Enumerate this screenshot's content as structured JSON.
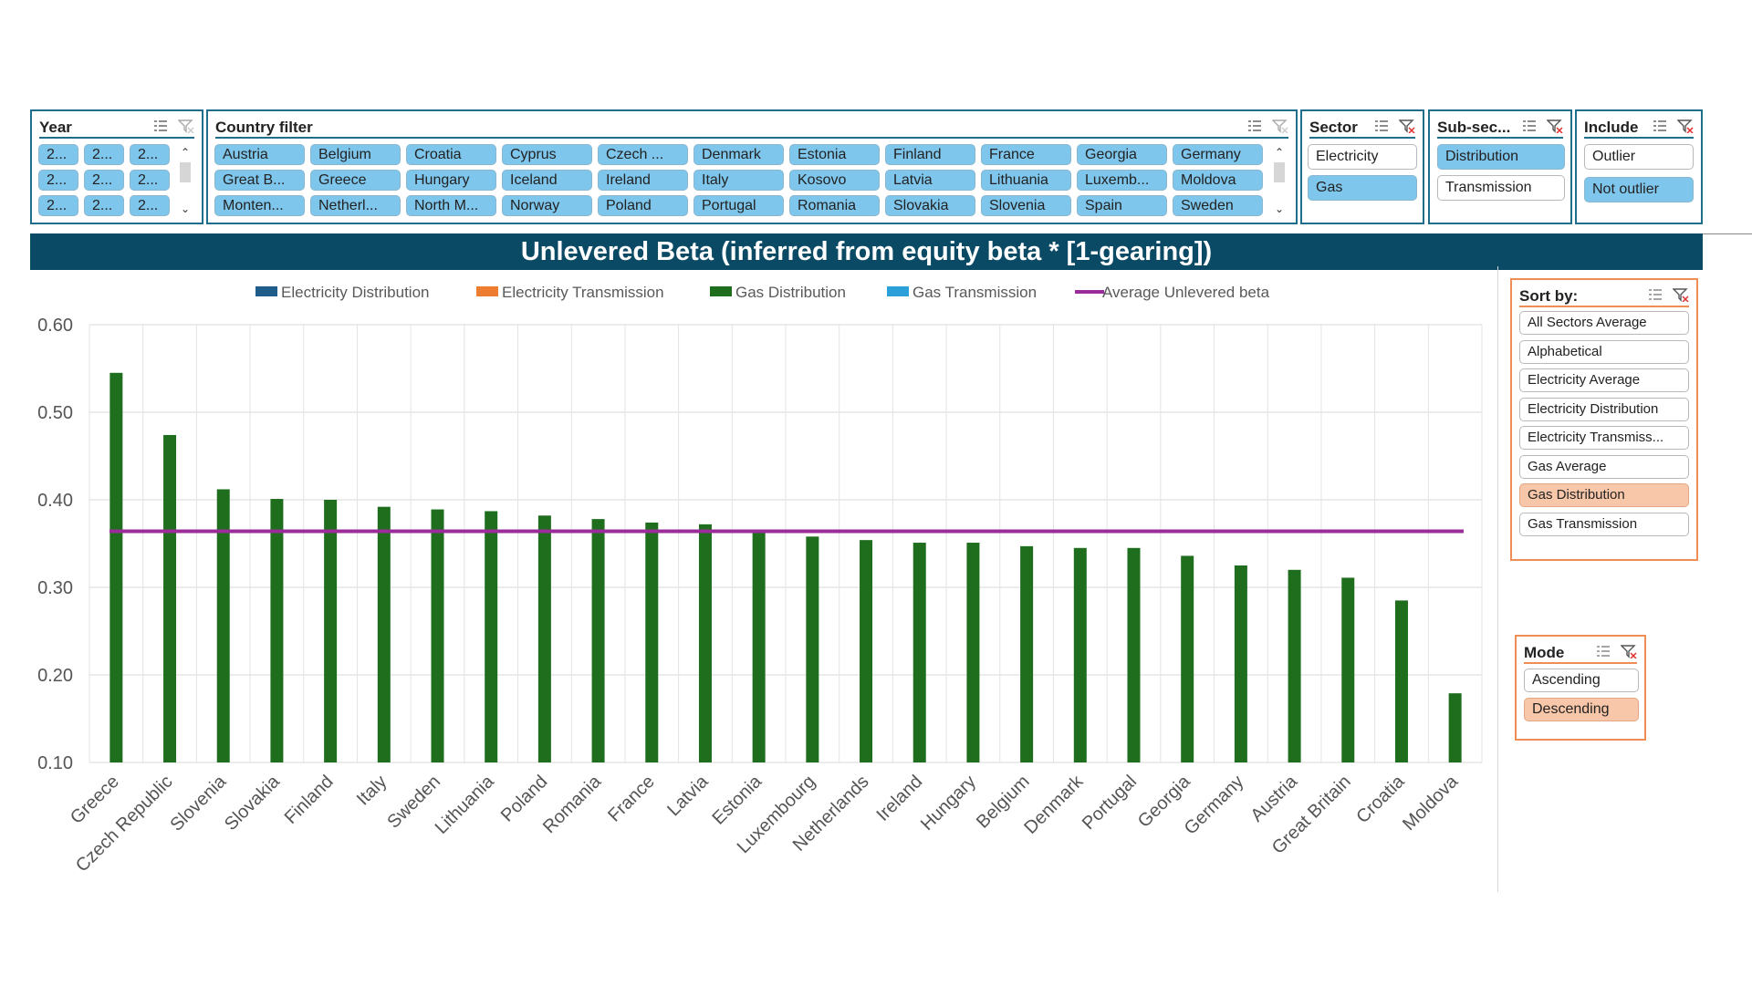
{
  "slicers": {
    "year": {
      "title": "Year",
      "items": [
        "2...",
        "2...",
        "2...",
        "2...",
        "2...",
        "2...",
        "2...",
        "2...",
        "2..."
      ]
    },
    "country": {
      "title": "Country filter",
      "items": [
        "Austria",
        "Belgium",
        "Croatia",
        "Cyprus",
        "Czech ...",
        "Denmark",
        "Estonia",
        "Finland",
        "France",
        "Georgia",
        "Germany",
        "Great B...",
        "Greece",
        "Hungary",
        "Iceland",
        "Ireland",
        "Italy",
        "Kosovo",
        "Latvia",
        "Lithuania",
        "Luxemb...",
        "Moldova",
        "Monten...",
        "Netherl...",
        "North M...",
        "Norway",
        "Poland",
        "Portugal",
        "Romania",
        "Slovakia",
        "Slovenia",
        "Spain",
        "Sweden"
      ]
    },
    "sector": {
      "title": "Sector",
      "items": [
        "Electricity",
        "Gas"
      ],
      "selected": "Gas"
    },
    "subsector": {
      "title": "Sub-sec...",
      "items": [
        "Distribution",
        "Transmission"
      ],
      "selected": "Distribution"
    },
    "include": {
      "title": "Include",
      "items": [
        "Outlier",
        "Not outlier"
      ],
      "selected": "Not outlier"
    },
    "sort_by": {
      "title": "Sort by:",
      "items": [
        "All Sectors Average",
        "Alphabetical",
        "Electricity Average",
        "Electricity Distribution",
        "Electricity Transmiss...",
        "Gas Average",
        "Gas Distribution",
        "Gas Transmission"
      ],
      "selected": "Gas Distribution"
    },
    "mode": {
      "title": "Mode",
      "items": [
        "Ascending",
        "Descending"
      ],
      "selected": "Descending"
    }
  },
  "colors": {
    "slicer_border": "#1f6e8c",
    "selected": "#7fc6ec",
    "peach": "#f8c6a8",
    "banner": "#0b4a65",
    "gas_distribution": "#1e6e1e",
    "average_line": "#9b2d9b"
  },
  "chart_data": {
    "type": "bar",
    "title": "Unlevered Beta (inferred from  equity beta * [1-gearing])",
    "legend": [
      {
        "name": "Electricity Distribution",
        "color": "#1f5c8a"
      },
      {
        "name": "Electricity Transmission",
        "color": "#ed7d31"
      },
      {
        "name": "Gas Distribution",
        "color": "#1e6e1e"
      },
      {
        "name": "Gas Transmission",
        "color": "#2a9fd8"
      },
      {
        "name": "Average Unlevered beta",
        "color": "#9b2d9b"
      }
    ],
    "legend_position": "top",
    "categories": [
      "Greece",
      "Czech Republic",
      "Slovenia",
      "Slovakia",
      "Finland",
      "Italy",
      "Sweden",
      "Lithuania",
      "Poland",
      "Romania",
      "France",
      "Latvia",
      "Estonia",
      "Luxembourg",
      "Netherlands",
      "Ireland",
      "Hungary",
      "Belgium",
      "Denmark",
      "Portugal",
      "Georgia",
      "Germany",
      "Austria",
      "Great Britain",
      "Croatia",
      "Moldova"
    ],
    "series": [
      {
        "name": "Gas Distribution",
        "type": "bar",
        "values": [
          0.545,
          0.474,
          0.412,
          0.401,
          0.4,
          0.392,
          0.389,
          0.387,
          0.382,
          0.378,
          0.374,
          0.372,
          0.364,
          0.358,
          0.354,
          0.351,
          0.351,
          0.347,
          0.345,
          0.345,
          0.336,
          0.325,
          0.32,
          0.311,
          0.285,
          0.179
        ]
      },
      {
        "name": "Average Unlevered beta",
        "type": "line",
        "value": 0.364
      }
    ],
    "y_ticks": [
      "0.10",
      "0.20",
      "0.30",
      "0.40",
      "0.50",
      "0.60"
    ],
    "ylim": [
      0.1,
      0.6
    ],
    "grid": true
  }
}
